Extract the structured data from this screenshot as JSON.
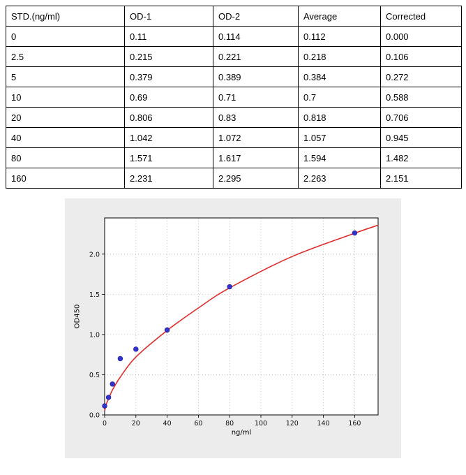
{
  "table": {
    "headers": [
      "STD.(ng/ml)",
      "OD-1",
      "OD-2",
      "Average",
      "Corrected"
    ],
    "rows": [
      [
        "0",
        "0.11",
        "0.114",
        "0.112",
        "0.000"
      ],
      [
        "2.5",
        "0.215",
        "0.221",
        "0.218",
        "0.106"
      ],
      [
        "5",
        "0.379",
        "0.389",
        "0.384",
        "0.272"
      ],
      [
        "10",
        "0.69",
        "0.71",
        "0.7",
        "0.588"
      ],
      [
        "20",
        "0.806",
        "0.83",
        "0.818",
        "0.706"
      ],
      [
        "40",
        "1.042",
        "1.072",
        "1.057",
        "0.945"
      ],
      [
        "80",
        "1.571",
        "1.617",
        "1.594",
        "1.482"
      ],
      [
        "160",
        "2.231",
        "2.295",
        "2.263",
        "2.151"
      ]
    ]
  },
  "chart_data": {
    "type": "scatter",
    "title": "",
    "xlabel": "ng/ml",
    "ylabel": "OD450",
    "x": [
      0,
      2.5,
      5,
      10,
      20,
      40,
      80,
      160
    ],
    "y": [
      0.112,
      0.218,
      0.384,
      0.7,
      0.818,
      1.057,
      1.594,
      2.263
    ],
    "fit_curve": {
      "x": [
        0,
        1,
        2.5,
        5,
        10,
        20,
        40,
        60,
        80,
        120,
        160,
        175
      ],
      "y": [
        0.05,
        0.13,
        0.2,
        0.31,
        0.47,
        0.72,
        1.05,
        1.33,
        1.58,
        1.97,
        2.26,
        2.36
      ]
    },
    "xlim": [
      0,
      175
    ],
    "ylim": [
      0,
      2.45
    ],
    "xtick_values": [
      0,
      20,
      40,
      60,
      80,
      100,
      120,
      140,
      160
    ],
    "xtick_labels": [
      "0",
      "20",
      "40",
      "60",
      "80",
      "100",
      "120",
      "140",
      "160"
    ],
    "ytick_values": [
      0.0,
      0.5,
      1.0,
      1.5,
      2.0
    ],
    "ytick_labels": [
      "0.0",
      "0.5",
      "1.0",
      "1.5",
      "2.0"
    ],
    "grid": true,
    "legend": "none",
    "figure_bg": "#ececec",
    "plot_bg": "#ffffff",
    "grid_color": "#b3b3b3",
    "axis_color": "#000000",
    "point_color": "#3333cc",
    "point_edge_color": "#1a1a99",
    "curve_color": "#e02b2b"
  }
}
